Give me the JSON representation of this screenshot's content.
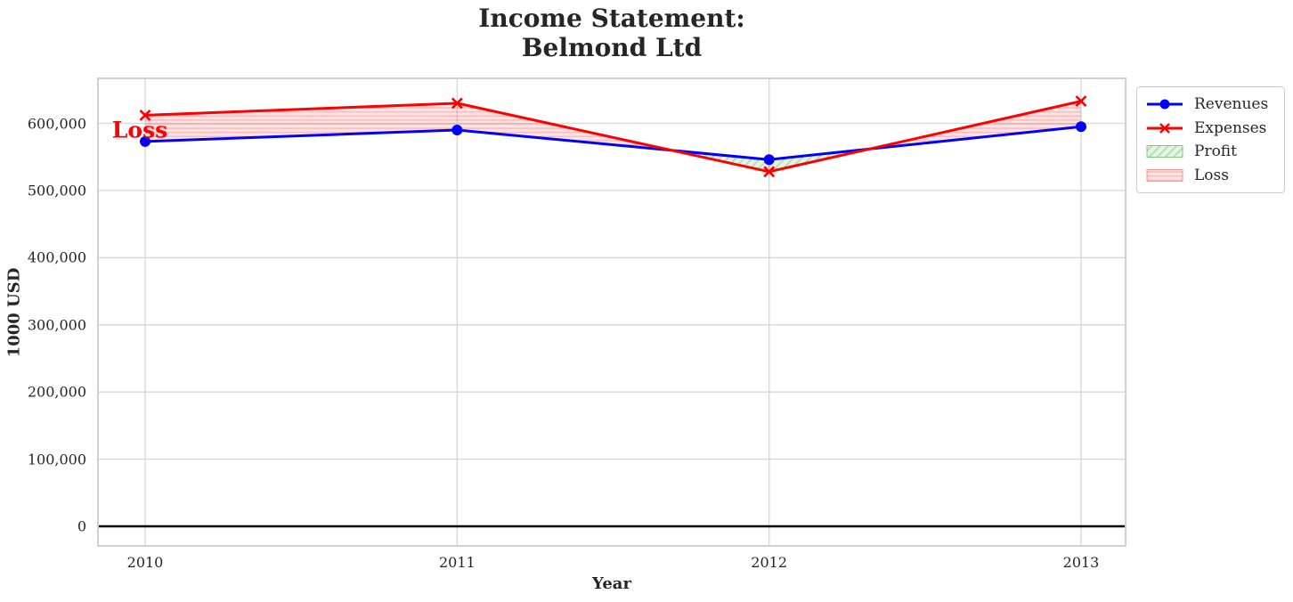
{
  "title": {
    "line1": "Income Statement:",
    "line2": "Belmond Ltd"
  },
  "axes": {
    "x_label": "Year",
    "y_label": "1000 USD"
  },
  "annotation": {
    "text": "Loss",
    "x": "2010",
    "y": 590000,
    "color": "#ff0000"
  },
  "legend": {
    "position": "upper right outside",
    "items": [
      {
        "label": "Revenues",
        "marker": "circle",
        "color": "#0000ff"
      },
      {
        "label": "Expenses",
        "marker": "x",
        "color": "#ff0000"
      },
      {
        "label": "Profit",
        "swatch": "green-diagonal-hatch",
        "color": "#2ca02c"
      },
      {
        "label": "Loss",
        "swatch": "red-horizontal-hatch",
        "color": "#ff0000"
      }
    ]
  },
  "colors": {
    "revenues": "#0000ff",
    "expenses": "#ff0000",
    "profit_fill": "#2ca02c",
    "loss_fill": "#ff0000",
    "grid": "#d6d6d6",
    "axis_border": "#d0d0d0",
    "zero_line": "#000000",
    "text": "#262626",
    "annotation": "#ff0000"
  },
  "chart_data": {
    "type": "line",
    "title": "Income Statement: Belmond Ltd",
    "xlabel": "Year",
    "ylabel": "1000 USD",
    "categories": [
      "2010",
      "2011",
      "2012",
      "2013"
    ],
    "series": [
      {
        "name": "Revenues",
        "color": "#0000ff",
        "marker": "circle",
        "values": [
          573000,
          590000,
          546000,
          595000
        ]
      },
      {
        "name": "Expenses",
        "color": "#ff0000",
        "marker": "x",
        "values": [
          612000,
          630000,
          528000,
          633000
        ]
      }
    ],
    "fill_between": [
      {
        "name": "Loss",
        "condition": "expenses > revenues",
        "style": "horizontal-hatch",
        "color": "#ff0000"
      },
      {
        "name": "Profit",
        "condition": "revenues > expenses",
        "style": "diagonal-hatch",
        "color": "#2ca02c"
      }
    ],
    "y_ticks": [
      0,
      100000,
      200000,
      300000,
      400000,
      500000,
      600000
    ],
    "y_tick_labels": [
      "0",
      "100,000",
      "200,000",
      "300,000",
      "400,000",
      "500,000",
      "600,000"
    ],
    "ylim": [
      -30000,
      667000
    ],
    "grid": true,
    "zero_line": true,
    "legend_position": "upper right outside",
    "annotations": [
      {
        "text": "Loss",
        "x": "2010",
        "y": 590000,
        "color": "#ff0000"
      }
    ]
  }
}
